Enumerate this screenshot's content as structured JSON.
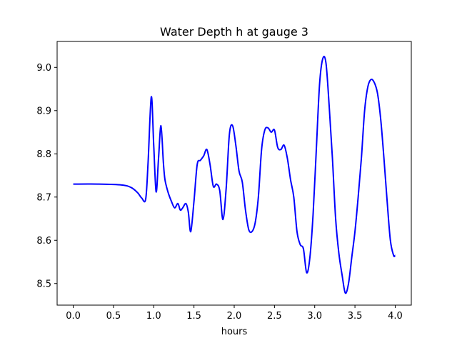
{
  "chart_data": {
    "type": "line",
    "title": "Water Depth h at gauge 3",
    "xlabel": "hours",
    "ylabel": "",
    "xlim": [
      -0.2,
      4.2
    ],
    "ylim": [
      8.45,
      9.06
    ],
    "x_ticks": [
      0.0,
      0.5,
      1.0,
      1.5,
      2.0,
      2.5,
      3.0,
      3.5,
      4.0
    ],
    "x_tick_labels": [
      "0.0",
      "0.5",
      "1.0",
      "1.5",
      "2.0",
      "2.5",
      "3.0",
      "3.5",
      "4.0"
    ],
    "y_ticks": [
      8.5,
      8.6,
      8.7,
      8.8,
      8.9,
      9.0
    ],
    "y_tick_labels": [
      "8.5",
      "8.6",
      "8.7",
      "8.8",
      "8.9",
      "9.0"
    ],
    "grid": false,
    "line_color": "#0000ff",
    "series": [
      {
        "x": [
          0.0,
          0.3,
          0.6,
          0.72,
          0.8,
          0.85,
          0.9,
          0.93,
          0.97,
          1.0,
          1.03,
          1.06,
          1.09,
          1.12,
          1.14,
          1.18,
          1.22,
          1.26,
          1.3,
          1.33,
          1.36,
          1.4,
          1.43,
          1.46,
          1.5,
          1.54,
          1.58,
          1.62,
          1.66,
          1.7,
          1.74,
          1.78,
          1.82,
          1.86,
          1.9,
          1.94,
          1.98,
          2.02,
          2.06,
          2.1,
          2.14,
          2.18,
          2.22,
          2.26,
          2.3,
          2.34,
          2.38,
          2.42,
          2.46,
          2.5,
          2.54,
          2.58,
          2.62,
          2.66,
          2.7,
          2.74,
          2.78,
          2.82,
          2.86,
          2.9,
          2.94,
          2.98,
          3.02,
          3.06,
          3.1,
          3.14,
          3.18,
          3.22,
          3.26,
          3.3,
          3.34,
          3.38,
          3.42,
          3.46,
          3.5,
          3.54,
          3.58,
          3.62,
          3.66,
          3.7,
          3.74,
          3.78,
          3.82,
          3.86,
          3.9,
          3.94,
          3.98,
          4.0
        ],
        "y": [
          8.73,
          8.73,
          8.728,
          8.722,
          8.71,
          8.698,
          8.695,
          8.78,
          8.932,
          8.82,
          8.712,
          8.79,
          8.865,
          8.78,
          8.74,
          8.71,
          8.69,
          8.675,
          8.685,
          8.67,
          8.675,
          8.685,
          8.665,
          8.62,
          8.69,
          8.775,
          8.785,
          8.795,
          8.81,
          8.775,
          8.725,
          8.73,
          8.715,
          8.648,
          8.72,
          8.845,
          8.865,
          8.82,
          8.76,
          8.735,
          8.67,
          8.625,
          8.62,
          8.64,
          8.7,
          8.81,
          8.855,
          8.86,
          8.85,
          8.855,
          8.815,
          8.81,
          8.82,
          8.79,
          8.74,
          8.7,
          8.62,
          8.59,
          8.58,
          8.525,
          8.56,
          8.66,
          8.81,
          8.96,
          9.02,
          9.01,
          8.91,
          8.79,
          8.65,
          8.57,
          8.52,
          8.478,
          8.5,
          8.56,
          8.62,
          8.7,
          8.79,
          8.9,
          8.955,
          8.972,
          8.965,
          8.94,
          8.88,
          8.79,
          8.69,
          8.6,
          8.565,
          8.565
        ]
      }
    ]
  }
}
